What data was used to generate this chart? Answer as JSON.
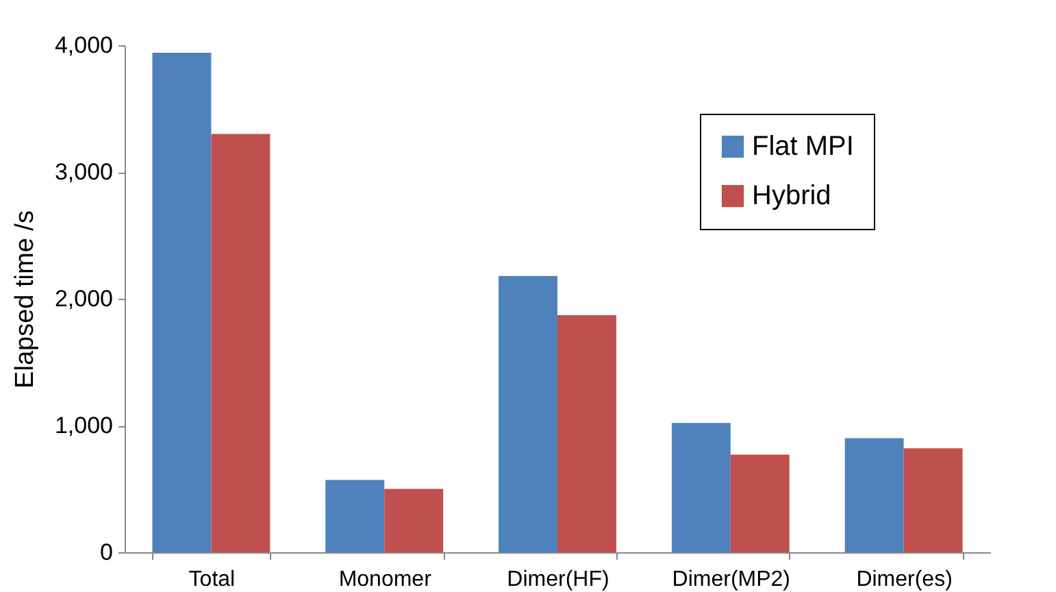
{
  "chart_data": {
    "type": "bar",
    "ylabel": "Elapsed time /s",
    "categories": [
      "Total",
      "Monomer",
      "Dimer(HF)",
      "Dimer(MP2)",
      "Dimer(es)"
    ],
    "series": [
      {
        "name": "Flat MPI",
        "color": "#4f81bd",
        "values": [
          3940,
          570,
          2180,
          1020,
          900
        ]
      },
      {
        "name": "Hybrid",
        "color": "#c0504d",
        "values": [
          3300,
          500,
          1870,
          770,
          820
        ]
      }
    ],
    "ylim": [
      0,
      4000
    ],
    "yticks": [
      0,
      {
        "value": 1000,
        "label": "1,000"
      },
      {
        "value": 2000,
        "label": "2,000"
      },
      {
        "value": 3000,
        "label": "3,000"
      },
      {
        "value": 4000,
        "label": "4,000"
      }
    ],
    "grid": false,
    "legend": "top right"
  }
}
